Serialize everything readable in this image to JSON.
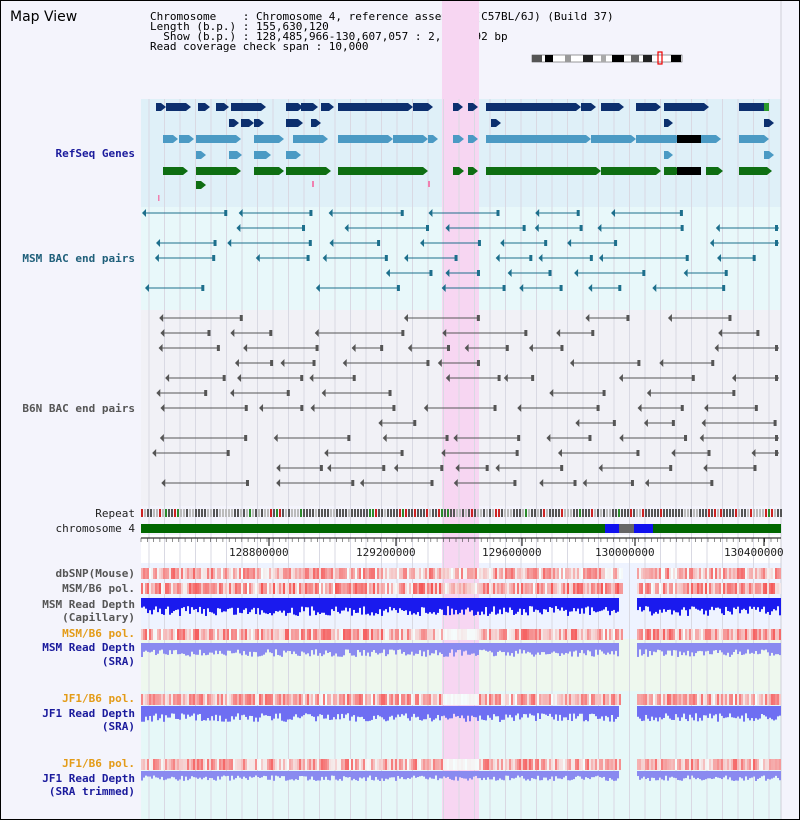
{
  "title": "Map View",
  "info": {
    "chromosome": "Chromosome    : Chromosome 4, reference assembly (C57BL/6J) (Build 37)",
    "length": "Length (b.p.) : 155,630,120",
    "show": "  Show (b.p.) : 128,485,966-130,607,057 : 2,121,092 bp",
    "coverage": "Read coverage check span : 10,000"
  },
  "tracks": {
    "refseq": "RefSeq Genes",
    "msm_bac": "MSM BAC end pairs",
    "b6n_bac": "B6N BAC end pairs",
    "repeat": "Repeat",
    "chromosome": "chromosome 4",
    "dbsnp": "dbSNP(Mouse)",
    "msm_b6_pol_1": "MSM/B6 pol.",
    "msm_read_depth_cap_1": "MSM Read Depth",
    "msm_read_depth_cap_2": "(Capillary)",
    "msm_b6_pol_2": "MSM/B6 pol.",
    "msm_read_depth_sra_1": "MSM Read Depth",
    "msm_read_depth_sra_2": "(SRA)",
    "jf1_b6_pol_1": "JF1/B6 pol.",
    "jf1_read_depth_sra_1": "JF1 Read Depth",
    "jf1_read_depth_sra_2": "(SRA)",
    "jf1_b6_pol_2": "JF1/B6 pol.",
    "jf1_read_depth_trim_1": "JF1 Read Depth",
    "jf1_read_depth_trim_2": "(SRA trimmed)"
  },
  "ruler": {
    "ticks": [
      "128800000",
      "129200000",
      "129600000",
      "130000000",
      "130400000"
    ]
  },
  "colors": {
    "highlight": "#f7d6f2",
    "refseq_navy": "#0c2f6e",
    "refseq_teal": "#4b9ac4",
    "refseq_green": "#0e6e12",
    "bac_teal": "#1d6f8c",
    "bac_gray": "#555555",
    "chrom_green": "#006600",
    "chrom_blue": "#1010ee",
    "depth_blue": "#1a1aee",
    "depth_light": "#8a8af0"
  }
}
